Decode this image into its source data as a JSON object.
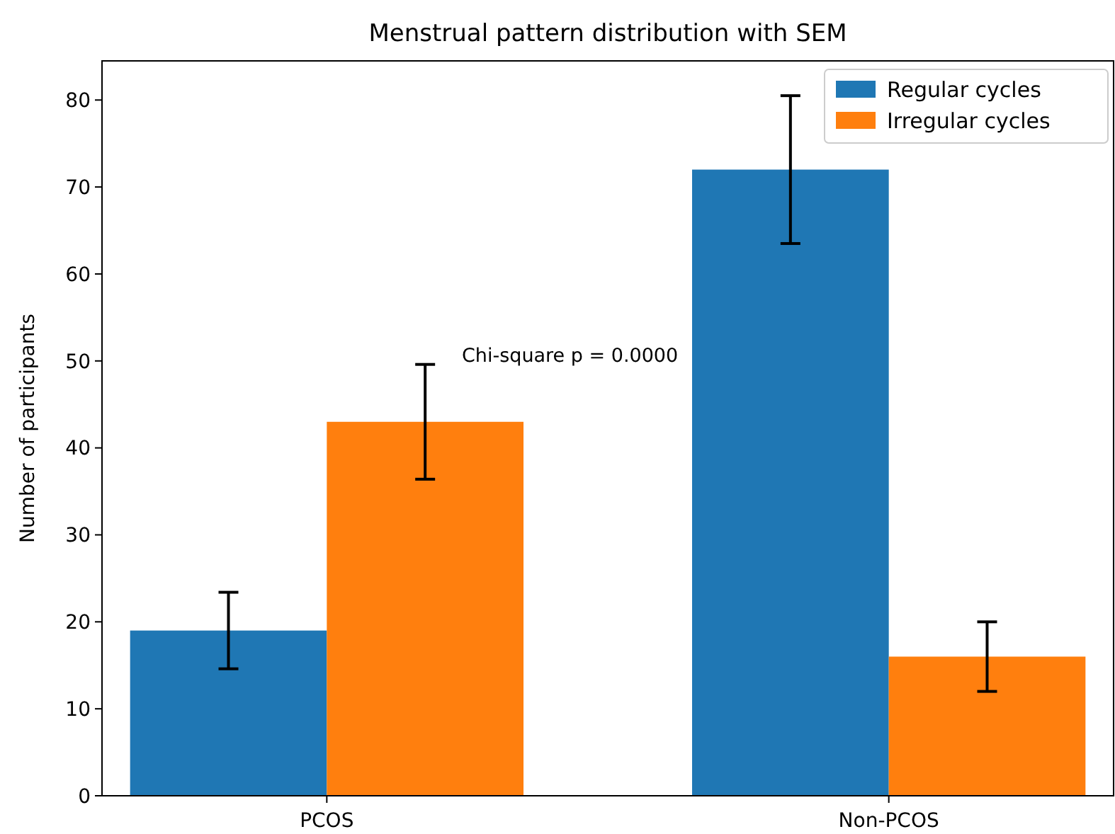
{
  "chart_data": {
    "type": "bar",
    "title": "Menstrual pattern distribution with SEM",
    "ylabel": "Number of participants",
    "categories": [
      "PCOS",
      "Non-PCOS"
    ],
    "series": [
      {
        "name": "Regular cycles",
        "color": "#1f77b4",
        "values": [
          19,
          72
        ],
        "errors": [
          4.4,
          8.5
        ]
      },
      {
        "name": "Irregular cycles",
        "color": "#ff7f0e",
        "values": [
          43,
          16
        ],
        "errors": [
          6.6,
          4.0
        ]
      }
    ],
    "ylim": [
      0,
      84.5
    ],
    "yticks": [
      0,
      10,
      20,
      30,
      40,
      50,
      60,
      70,
      80
    ],
    "grid": false,
    "legend": "top right",
    "annotations": [
      "Chi-square p = 0.0000"
    ]
  }
}
